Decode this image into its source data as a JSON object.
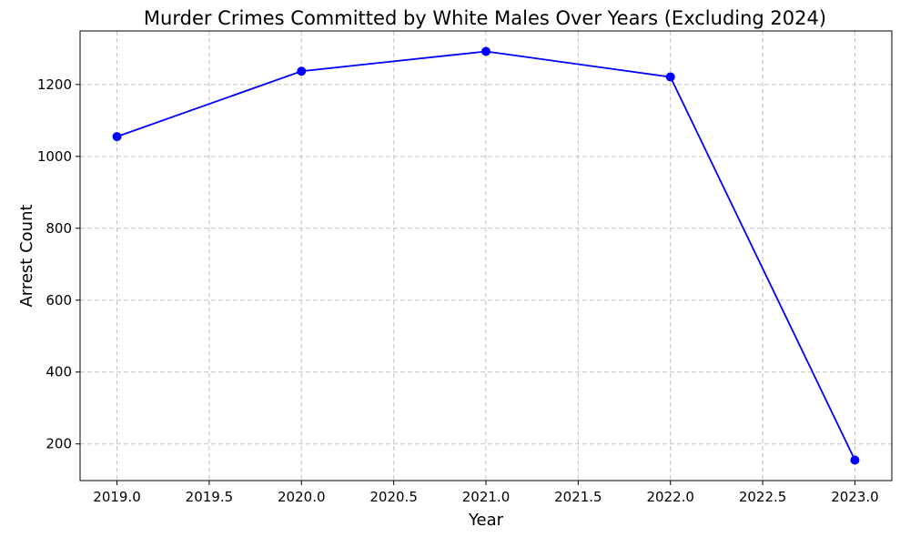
{
  "chart_data": {
    "type": "line",
    "title": "Murder Crimes Committed by White Males Over Years (Excluding 2024)",
    "xlabel": "Year",
    "ylabel": "Arrest Count",
    "x": [
      2019,
      2020,
      2021,
      2022,
      2023
    ],
    "series": [
      {
        "values": [
          1055,
          1237,
          1292,
          1221,
          155
        ]
      }
    ],
    "xlim": [
      2018.8,
      2023.2
    ],
    "ylim": [
      98,
      1349
    ],
    "x_ticks": [
      "2019.0",
      "2019.5",
      "2020.0",
      "2020.5",
      "2021.0",
      "2021.5",
      "2022.0",
      "2022.5",
      "2023.0"
    ],
    "x_tick_values": [
      2019.0,
      2019.5,
      2020.0,
      2020.5,
      2021.0,
      2021.5,
      2022.0,
      2022.5,
      2023.0
    ],
    "y_ticks": [
      "200",
      "400",
      "600",
      "800",
      "1000",
      "1200"
    ],
    "y_tick_values": [
      200,
      400,
      600,
      800,
      1000,
      1200
    ],
    "grid": true,
    "line_color": "#0000ff",
    "marker": "circle",
    "grid_color": "#c4c4c4"
  }
}
